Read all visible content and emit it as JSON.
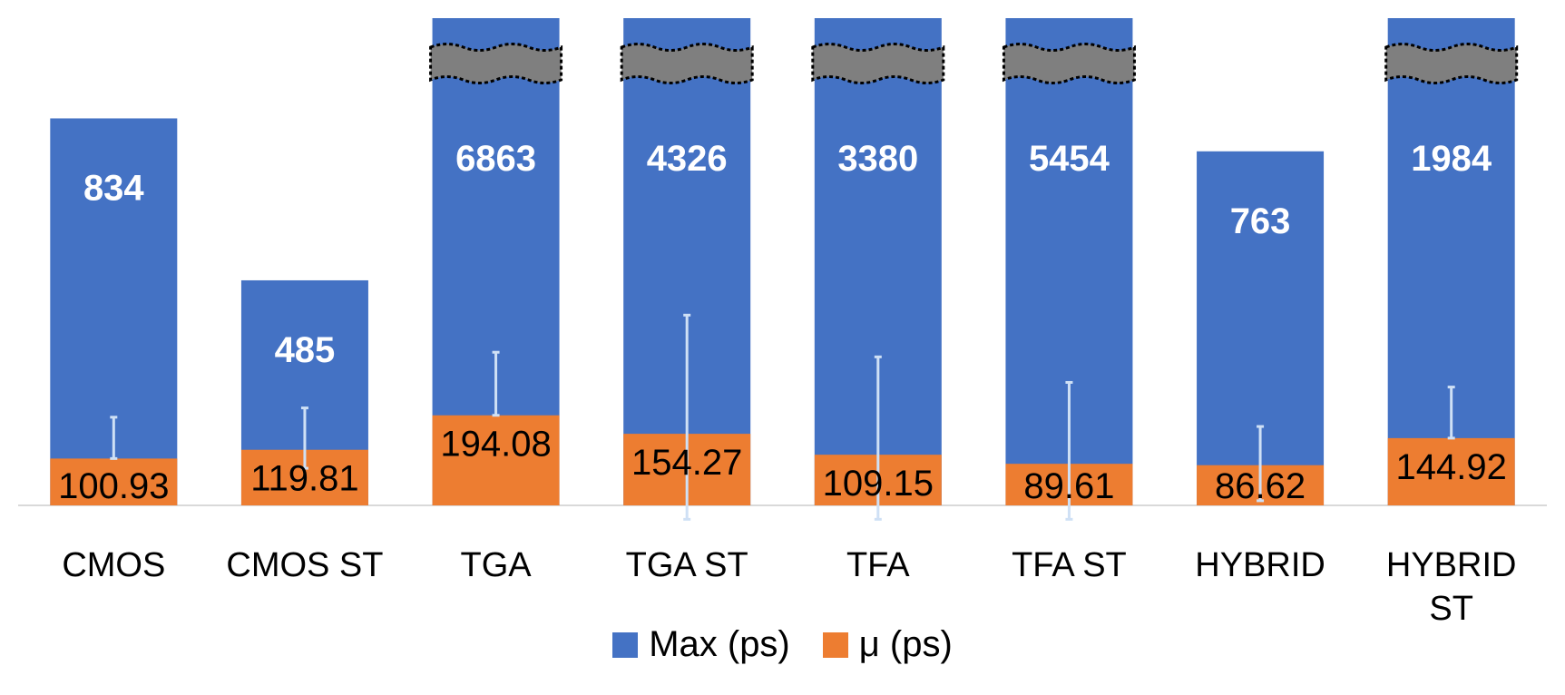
{
  "chart_data": {
    "type": "bar",
    "stacked": false,
    "axis_break": true,
    "categories": [
      "CMOS",
      "CMOS ST",
      "TGA",
      "TGA ST",
      "TFA",
      "TFA ST",
      "HYBRID",
      "HYBRID ST"
    ],
    "category_lines": [
      [
        "CMOS"
      ],
      [
        "CMOS ST"
      ],
      [
        "TGA"
      ],
      [
        "TGA ST"
      ],
      [
        "TFA"
      ],
      [
        "TFA ST"
      ],
      [
        "HYBRID"
      ],
      [
        "HYBRID",
        "ST"
      ]
    ],
    "series": [
      {
        "name": "Max (ps)",
        "color": "#4472C4",
        "values": [
          834,
          485,
          6863,
          4326,
          3380,
          5454,
          763,
          1984
        ],
        "labels": [
          "834",
          "485",
          "6863",
          "4326",
          "3380",
          "5454",
          "763",
          "1984"
        ]
      },
      {
        "name": "μ (ps)",
        "color": "#ED7D31",
        "values": [
          100.93,
          119.81,
          194.08,
          154.27,
          109.15,
          89.61,
          86.62,
          144.92
        ],
        "labels": [
          "100.93",
          "119.81",
          "194.08",
          "154.27",
          "109.15",
          "89.61",
          "86.62",
          "144.92"
        ]
      }
    ],
    "broken_bars": [
      false,
      false,
      true,
      true,
      true,
      true,
      false,
      true
    ],
    "error_bars": [
      {
        "low": 100.93,
        "high": 190
      },
      {
        "low": 80,
        "high": 210
      },
      {
        "low": 194.08,
        "high": 330
      },
      {
        "low": -30,
        "high": 410
      },
      {
        "low": -30,
        "high": 320
      },
      {
        "low": -30,
        "high": 265
      },
      {
        "low": 10,
        "high": 170
      },
      {
        "low": 144.92,
        "high": 255
      }
    ],
    "ylim": [
      0,
      1050
    ],
    "legend_position": "bottom",
    "grid": false
  }
}
